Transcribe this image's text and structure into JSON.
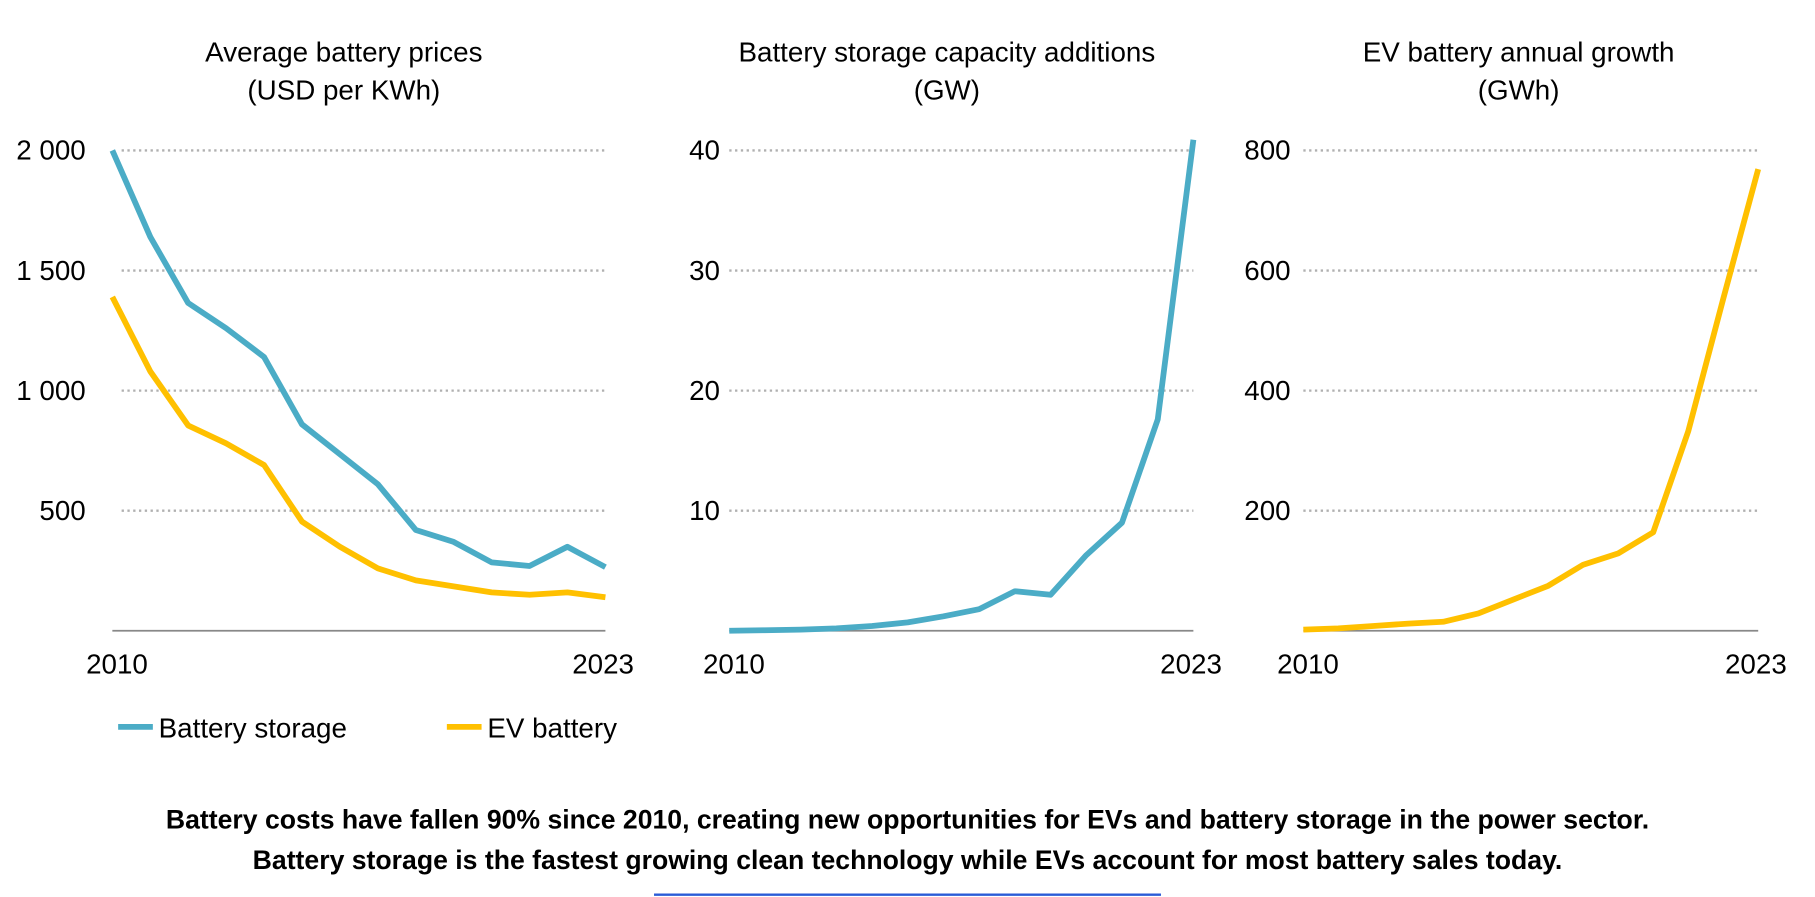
{
  "chart_data": [
    {
      "type": "line",
      "title": "Average battery prices",
      "subtitle": "(USD per KWh)",
      "x": [
        2010,
        2011,
        2012,
        2013,
        2014,
        2015,
        2016,
        2017,
        2018,
        2019,
        2020,
        2021,
        2022,
        2023
      ],
      "xlim": [
        2010,
        2023
      ],
      "xticks": [
        2010,
        2023
      ],
      "ylim": [
        0,
        2000
      ],
      "yticks": [
        {
          "value": 500,
          "label": "500"
        },
        {
          "value": 1000,
          "label": "1 000"
        },
        {
          "value": 1500,
          "label": "1 500"
        },
        {
          "value": 2000,
          "label": "2 000"
        }
      ],
      "grid": true,
      "legend": "bottom",
      "series": [
        {
          "name": "Battery storage",
          "color": "#4bacc6",
          "values": [
            2000,
            1640,
            1365,
            1260,
            1140,
            860,
            735,
            610,
            420,
            370,
            285,
            270,
            350,
            265
          ]
        },
        {
          "name": "EV battery",
          "color": "#ffc000",
          "values": [
            1390,
            1080,
            855,
            780,
            690,
            455,
            350,
            260,
            210,
            185,
            160,
            150,
            160,
            140
          ]
        }
      ]
    },
    {
      "type": "line",
      "title": "Battery storage capacity additions",
      "subtitle": "(GW)",
      "x": [
        2010,
        2011,
        2012,
        2013,
        2014,
        2015,
        2016,
        2017,
        2018,
        2019,
        2020,
        2021,
        2022,
        2023
      ],
      "xlim": [
        2010,
        2023
      ],
      "xticks": [
        2010,
        2023
      ],
      "ylim": [
        0,
        40
      ],
      "yticks": [
        10,
        20,
        30,
        40
      ],
      "grid": true,
      "series": [
        {
          "color": "#4bacc6",
          "values": [
            0,
            0.05,
            0.1,
            0.2,
            0.4,
            0.7,
            1.2,
            1.8,
            3.3,
            3.0,
            6.3,
            9.0,
            17.6,
            40.9
          ]
        }
      ]
    },
    {
      "type": "line",
      "title": "EV battery annual growth",
      "subtitle": "(GWh)",
      "x": [
        2010,
        2011,
        2012,
        2013,
        2014,
        2015,
        2016,
        2017,
        2018,
        2019,
        2020,
        2021,
        2022,
        2023
      ],
      "xlim": [
        2010,
        2023
      ],
      "xticks": [
        2010,
        2023
      ],
      "ylim": [
        0,
        800
      ],
      "yticks": [
        200,
        400,
        600,
        800
      ],
      "grid": true,
      "series": [
        {
          "color": "#ffc000",
          "values": [
            2,
            4,
            8,
            12,
            15,
            29,
            52,
            75,
            110,
            129,
            164,
            332,
            553,
            769
          ]
        }
      ]
    }
  ],
  "caption": [
    "Battery costs have fallen 90% since 2010, creating new opportunities for EVs and battery storage in the power sector.",
    "Battery storage is the fastest growing clean technology while EVs account for most battery sales today."
  ]
}
